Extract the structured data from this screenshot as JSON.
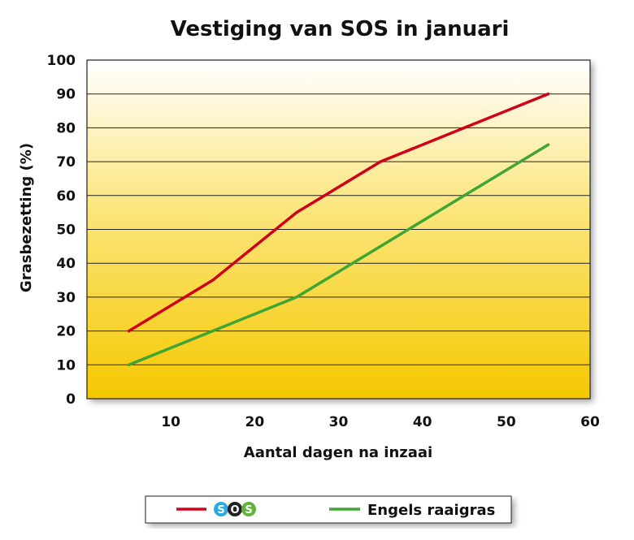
{
  "chart_data": {
    "type": "line",
    "title": "Vestiging van SOS in januari",
    "xlabel": "Aantal dagen na inzaai",
    "ylabel": "Grasbezetting (%)",
    "xlim": [
      0,
      60
    ],
    "ylim": [
      0,
      100
    ],
    "xticks": [
      10,
      20,
      30,
      40,
      50,
      60
    ],
    "yticks": [
      0,
      10,
      20,
      30,
      40,
      50,
      60,
      70,
      80,
      90,
      100
    ],
    "grid": "horizontal",
    "legend_position": "bottom",
    "x": [
      5,
      15,
      25,
      35,
      45,
      55
    ],
    "series": [
      {
        "name": "SOS",
        "values": [
          20,
          35,
          55,
          70,
          80,
          90
        ],
        "color": "#d0021b"
      },
      {
        "name": "Engels raaigras",
        "values": [
          10,
          20,
          30,
          45,
          60,
          75
        ],
        "color": "#3fa535"
      }
    ]
  },
  "legend": {
    "logo_letters": [
      "S",
      "O",
      "S"
    ],
    "logo_colors": [
      "#29abe2",
      "#222222",
      "#62b33a"
    ]
  }
}
